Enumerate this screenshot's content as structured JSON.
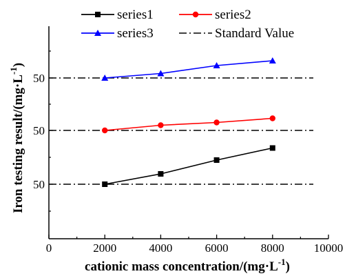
{
  "chart_data": {
    "type": "line",
    "xlabel": "cationic mass concentration/(mg·L",
    "xlabel_sup": "-1",
    "xlabel_tail": ")",
    "ylabel": "Iron testing result/(mg·L",
    "ylabel_sup": "-1",
    "ylabel_tail": ")",
    "xlim": [
      0,
      10000
    ],
    "xticks": [
      "0",
      "2000",
      "4000",
      "6000",
      "8000",
      "10000"
    ],
    "yticks": [
      {
        "label": "50",
        "level": "series1"
      },
      {
        "label": "50",
        "level": "series2"
      },
      {
        "label": "50",
        "level": "series3"
      }
    ],
    "x": [
      2000,
      4000,
      6000,
      8000
    ],
    "series": [
      {
        "name": "series1",
        "color": "#000000",
        "marker": "square",
        "values": [
          50.0,
          50.3,
          50.7,
          51.05
        ]
      },
      {
        "name": "series2",
        "color": "#ff0000",
        "marker": "circle",
        "values": [
          50.0,
          50.15,
          50.23,
          50.35
        ]
      },
      {
        "name": "series3",
        "color": "#0000ff",
        "marker": "triangle",
        "values": [
          50.0,
          50.13,
          50.36,
          50.5
        ]
      }
    ],
    "standard": {
      "name": "Standard Value",
      "color": "#000000",
      "style": "dash-dot",
      "value": 50
    },
    "legend_position": "top",
    "grid": false
  }
}
